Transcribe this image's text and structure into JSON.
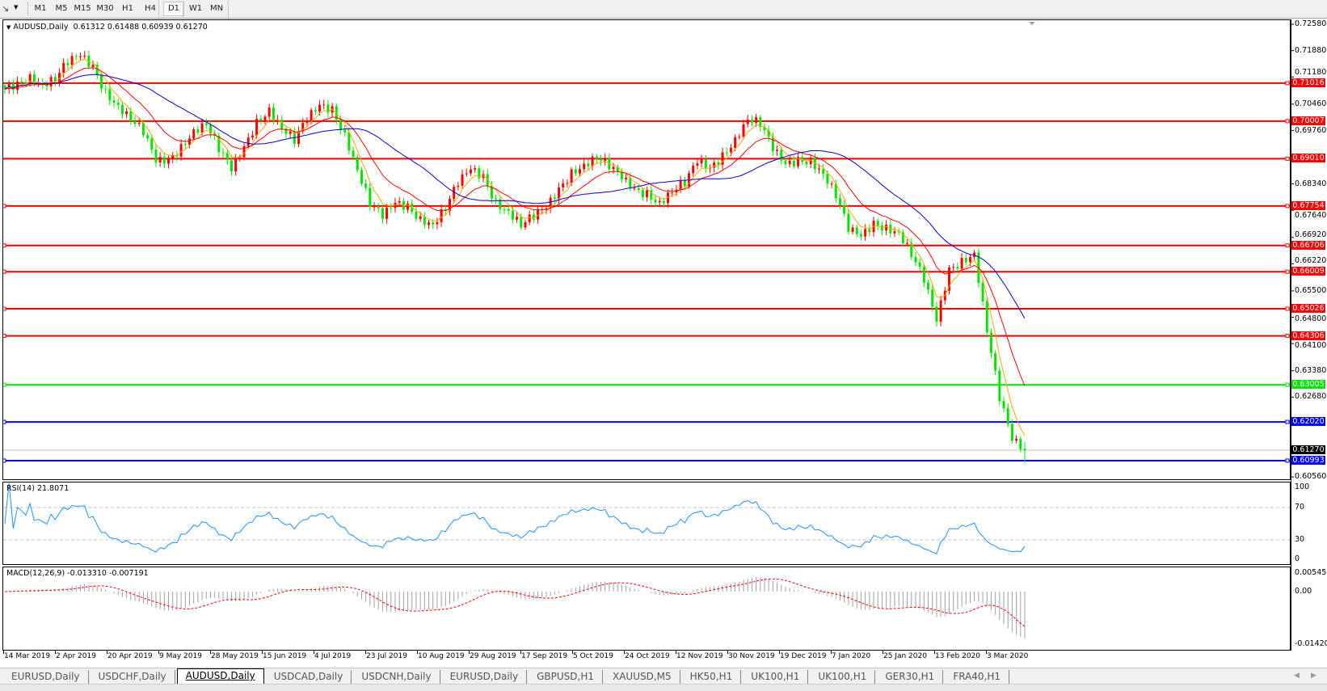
{
  "toolbar": {
    "timeframes": [
      "M1",
      "M5",
      "M15",
      "M30",
      "H1",
      "H4",
      "D1",
      "W1",
      "MN"
    ],
    "active_timeframe": "D1"
  },
  "chart": {
    "symbol_legend": "AUDUSD,Daily",
    "ohlc_legend": "0.61312 0.61488 0.60939 0.61270",
    "last": {
      "open": 0.61312,
      "high": 0.61488,
      "low": 0.60939,
      "close": 0.6127
    },
    "bull_color": "#ff0000",
    "bear_color": "#00e600",
    "ma_colors": [
      "#ffa500",
      "#ff0000",
      "#0000cc"
    ],
    "price_ticks": [
      "0.72580",
      "0.71880",
      "0.71180",
      "0.70460",
      "0.69760",
      "0.68340",
      "0.67640",
      "0.66920",
      "0.66220",
      "0.65500",
      "0.64800",
      "0.64100",
      "0.63380",
      "0.62680",
      "0.60560"
    ],
    "horizontal_lines": [
      {
        "price": "0.71016",
        "color": "#ff0000"
      },
      {
        "price": "0.70007",
        "color": "#ff0000"
      },
      {
        "price": "0.69010",
        "color": "#ff0000"
      },
      {
        "price": "0.67754",
        "color": "#ff0000"
      },
      {
        "price": "0.66706",
        "color": "#ff0000"
      },
      {
        "price": "0.66009",
        "color": "#ff0000"
      },
      {
        "price": "0.65026",
        "color": "#ff0000"
      },
      {
        "price": "0.64306",
        "color": "#ff0000"
      },
      {
        "price": "0.63005",
        "color": "#00e600"
      },
      {
        "price": "0.62020",
        "color": "#0000ff"
      },
      {
        "price": "0.60993",
        "color": "#0000ff"
      }
    ],
    "bid_label": "0.61270",
    "close_path": [
      0.7086,
      0.7097,
      0.7115,
      0.7097,
      0.7115,
      0.716,
      0.7175,
      0.7142,
      0.7075,
      0.7041,
      0.7008,
      0.6974,
      0.6895,
      0.6895,
      0.6929,
      0.6974,
      0.6996,
      0.6929,
      0.6873,
      0.6929,
      0.6996,
      0.703,
      0.6985,
      0.6951,
      0.7008,
      0.7041,
      0.703,
      0.6963,
      0.6873,
      0.6783,
      0.675,
      0.6783,
      0.6772,
      0.6739,
      0.6727,
      0.6772,
      0.6839,
      0.6873,
      0.6851,
      0.6783,
      0.6761,
      0.6727,
      0.675,
      0.6772,
      0.6817,
      0.6862,
      0.6884,
      0.6907,
      0.6884,
      0.6851,
      0.6817,
      0.6806,
      0.6783,
      0.6817,
      0.6839,
      0.6895,
      0.6873,
      0.6907,
      0.6951,
      0.7008,
      0.6996,
      0.6929,
      0.6884,
      0.6895,
      0.6895,
      0.6862,
      0.6806,
      0.6716,
      0.6694,
      0.6727,
      0.6716,
      0.6705,
      0.6649,
      0.6582,
      0.647,
      0.6604,
      0.6627,
      0.6649,
      0.6447,
      0.6268,
      0.6156,
      0.6127
    ],
    "dates": [
      "14 Mar 2019",
      "2 Apr 2019",
      "20 Apr 2019",
      "9 May 2019",
      "28 May 2019",
      "15 Jun 2019",
      "4 Jul 2019",
      "23 Jul 2019",
      "10 Aug 2019",
      "29 Aug 2019",
      "17 Sep 2019",
      "5 Oct 2019",
      "24 Oct 2019",
      "12 Nov 2019",
      "30 Nov 2019",
      "19 Dec 2019",
      "7 Jan 2020",
      "25 Jan 2020",
      "13 Feb 2020",
      "3 Mar 2020"
    ]
  },
  "rsi": {
    "legend": "RSI(14) 21.8071",
    "ticks": [
      "100",
      "70",
      "30",
      "0"
    ],
    "levels": [
      70,
      30
    ],
    "color": "#1e90ff"
  },
  "macd": {
    "legend": "MACD(12,26,9) -0.013310 -0.007191",
    "ticks": [
      "0.005459",
      "0.00",
      "-0.014204"
    ],
    "range": [
      -0.014204,
      0.005459
    ],
    "histogram_color": "#a0a0a0",
    "signal_color": "#ff0000"
  },
  "tabs": [
    {
      "label": "EURUSD,Daily"
    },
    {
      "label": "USDCHF,Daily"
    },
    {
      "label": "AUDUSD,Daily",
      "active": true
    },
    {
      "label": "USDCAD,Daily"
    },
    {
      "label": "USDCNH,Daily"
    },
    {
      "label": "EURUSD,Daily"
    },
    {
      "label": "GBPUSD,H1"
    },
    {
      "label": "XAUUSD,M5"
    },
    {
      "label": "HK50,H1"
    },
    {
      "label": "UK100,H1"
    },
    {
      "label": "UK100,H1"
    },
    {
      "label": "GER30,H1"
    },
    {
      "label": "FRA40,H1"
    }
  ]
}
